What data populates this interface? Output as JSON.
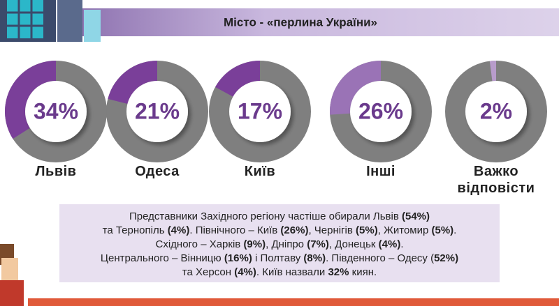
{
  "chart_data": {
    "type": "donut",
    "title": "Місто - «перлина України»",
    "categories": [
      "Львів",
      "Одеса",
      "Київ",
      "Інші",
      "Важко відповісти"
    ],
    "values": [
      34,
      21,
      17,
      26,
      2
    ],
    "value_labels": [
      "34%",
      "21%",
      "17%",
      "26%",
      "2%"
    ],
    "colors": [
      "#7a3f99",
      "#7a3f99",
      "#7a3f99",
      "#9a73b6",
      "#b89ccb"
    ],
    "rest_color": "#7f7f7f"
  },
  "note": {
    "lines": [
      [
        {
          "text": "Представники Західного регіону частіше обирали Львів ",
          "bold": false
        },
        {
          "text": "(54%)",
          "bold": true
        }
      ],
      [
        {
          "text": "та Тернопіль ",
          "bold": false
        },
        {
          "text": "(4%)",
          "bold": true
        },
        {
          "text": ". Північного – Київ ",
          "bold": false
        },
        {
          "text": "(26%)",
          "bold": true
        },
        {
          "text": ", Чернігів ",
          "bold": false
        },
        {
          "text": "(5%)",
          "bold": true
        },
        {
          "text": ", Житомир ",
          "bold": false
        },
        {
          "text": "(5%)",
          "bold": true
        },
        {
          "text": ".",
          "bold": false
        }
      ],
      [
        {
          "text": "Східного – Харків ",
          "bold": false
        },
        {
          "text": "(9%)",
          "bold": true
        },
        {
          "text": ", Дніпро ",
          "bold": false
        },
        {
          "text": "(7%)",
          "bold": true
        },
        {
          "text": ", Донецьк ",
          "bold": false
        },
        {
          "text": "(4%)",
          "bold": true
        },
        {
          "text": ".",
          "bold": false
        }
      ],
      [
        {
          "text": "Центрального – Вінницю ",
          "bold": false
        },
        {
          "text": "(16%)",
          "bold": true
        },
        {
          "text": " і Полтаву ",
          "bold": false
        },
        {
          "text": "(8%)",
          "bold": true
        },
        {
          "text": ". Південного – Одесу (",
          "bold": false
        },
        {
          "text": "52%)",
          "bold": true
        }
      ],
      [
        {
          "text": "та Херсон ",
          "bold": false
        },
        {
          "text": "(4%)",
          "bold": true
        },
        {
          "text": ". Київ назвали ",
          "bold": false
        },
        {
          "text": "32%",
          "bold": true
        },
        {
          "text": " киян.",
          "bold": false
        }
      ]
    ]
  }
}
